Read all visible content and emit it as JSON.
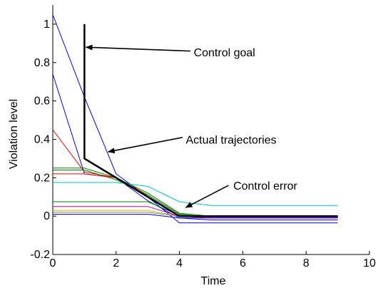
{
  "chart_data": {
    "type": "line",
    "title": "",
    "xlabel": "Time",
    "ylabel": "Violation level",
    "xlim": [
      0,
      10
    ],
    "ylim": [
      -0.2,
      1.1
    ],
    "xticks": [
      "0",
      "2",
      "4",
      "6",
      "8",
      "10"
    ],
    "yticks": [
      "-0.2",
      "0",
      "0.2",
      "0.4",
      "0.6",
      "0.8",
      "1"
    ],
    "grid": false,
    "series": [
      {
        "color": "#0000ff",
        "x": [
          0,
          1,
          2,
          3,
          4,
          5,
          6,
          7,
          8,
          9
        ],
        "y": [
          1.05,
          0.62,
          0.22,
          0.1,
          -0.035,
          -0.035,
          -0.035,
          -0.035,
          -0.035,
          -0.035
        ]
      },
      {
        "color": "#0000ff",
        "x": [
          0,
          1,
          2,
          3,
          4,
          5,
          6,
          7,
          8,
          9
        ],
        "y": [
          0.74,
          0.22,
          0.2,
          0.08,
          -0.01,
          -0.02,
          -0.02,
          -0.02,
          -0.02,
          -0.02
        ]
      },
      {
        "color": "#ff0000",
        "x": [
          0,
          1,
          2,
          3,
          4,
          5,
          6,
          7,
          8,
          9
        ],
        "y": [
          0.45,
          0.23,
          0.2,
          0.11,
          0.01,
          -0.005,
          -0.005,
          -0.005,
          -0.005,
          -0.005
        ]
      },
      {
        "color": "#008000",
        "x": [
          0,
          1,
          2,
          3,
          4,
          5,
          6,
          7,
          8,
          9
        ],
        "y": [
          0.25,
          0.25,
          0.2,
          0.12,
          0.015,
          0.0,
          0.0,
          0.0,
          0.0,
          0.0
        ]
      },
      {
        "color": "#008000",
        "x": [
          0,
          1,
          2,
          3,
          4,
          5,
          6,
          7,
          8,
          9
        ],
        "y": [
          0.24,
          0.24,
          0.19,
          0.11,
          0.01,
          -0.005,
          -0.005,
          -0.005,
          -0.005,
          -0.005
        ]
      },
      {
        "color": "#ff0000",
        "x": [
          0,
          1,
          2,
          3,
          4,
          5,
          6,
          7,
          8,
          9
        ],
        "y": [
          0.22,
          0.22,
          0.2,
          0.1,
          0.0,
          -0.01,
          -0.01,
          -0.01,
          -0.01,
          -0.01
        ]
      },
      {
        "color": "#00bfbf",
        "x": [
          0,
          1,
          2,
          3,
          4,
          5,
          6,
          7,
          8,
          9
        ],
        "y": [
          0.175,
          0.175,
          0.175,
          0.155,
          0.075,
          0.055,
          0.055,
          0.055,
          0.055,
          0.055
        ]
      },
      {
        "color": "#008000",
        "x": [
          0,
          1,
          2,
          3,
          4,
          5,
          6,
          7,
          8,
          9
        ],
        "y": [
          0.075,
          0.075,
          0.075,
          0.075,
          0.005,
          0.0,
          0.0,
          0.0,
          0.0,
          0.0
        ]
      },
      {
        "color": "#bf00bf",
        "x": [
          0,
          1,
          2,
          3,
          4,
          5,
          6,
          7,
          8,
          9
        ],
        "y": [
          0.05,
          0.05,
          0.05,
          0.05,
          0.0,
          -0.005,
          -0.005,
          -0.005,
          -0.005,
          -0.005
        ]
      },
      {
        "color": "#bfbf00",
        "x": [
          0,
          1,
          2,
          3,
          4,
          5,
          6,
          7,
          8,
          9
        ],
        "y": [
          0.03,
          0.03,
          0.03,
          0.03,
          0.0,
          -0.003,
          -0.003,
          -0.003,
          -0.003,
          -0.003
        ]
      },
      {
        "color": "#808080",
        "x": [
          0,
          1,
          2,
          3,
          4,
          5,
          6,
          7,
          8,
          9
        ],
        "y": [
          0.02,
          0.02,
          0.02,
          0.02,
          0.0,
          0.0,
          0.0,
          0.0,
          0.0,
          0.0
        ]
      },
      {
        "color": "#0000ff",
        "x": [
          0,
          1,
          2,
          3,
          4,
          5,
          6,
          7,
          8,
          9
        ],
        "y": [
          0.01,
          0.01,
          0.01,
          0.01,
          -0.01,
          -0.01,
          -0.01,
          -0.01,
          -0.01,
          -0.01
        ]
      },
      {
        "color": "#000000",
        "bold": true,
        "x": [
          1,
          1,
          2,
          3,
          4,
          5,
          6,
          7,
          8,
          9
        ],
        "y": [
          1.0,
          0.3,
          0.2,
          0.1,
          0.0,
          0.0,
          0.0,
          0.0,
          0.0,
          0.0
        ]
      }
    ],
    "annotations": [
      {
        "text": "Control goal",
        "text_x": 4.45,
        "text_y": 0.855,
        "arrow_from": [
          4.35,
          0.86
        ],
        "arrow_to": [
          1.05,
          0.88
        ]
      },
      {
        "text": "Actual trajectories",
        "text_x": 4.2,
        "text_y": 0.4,
        "arrow_from": [
          4.1,
          0.41
        ],
        "arrow_to": [
          1.75,
          0.335
        ]
      },
      {
        "text": "Control error",
        "text_x": 5.7,
        "text_y": 0.16,
        "arrow_from": [
          5.55,
          0.16
        ],
        "arrow_to": [
          4.2,
          0.045
        ]
      }
    ]
  }
}
